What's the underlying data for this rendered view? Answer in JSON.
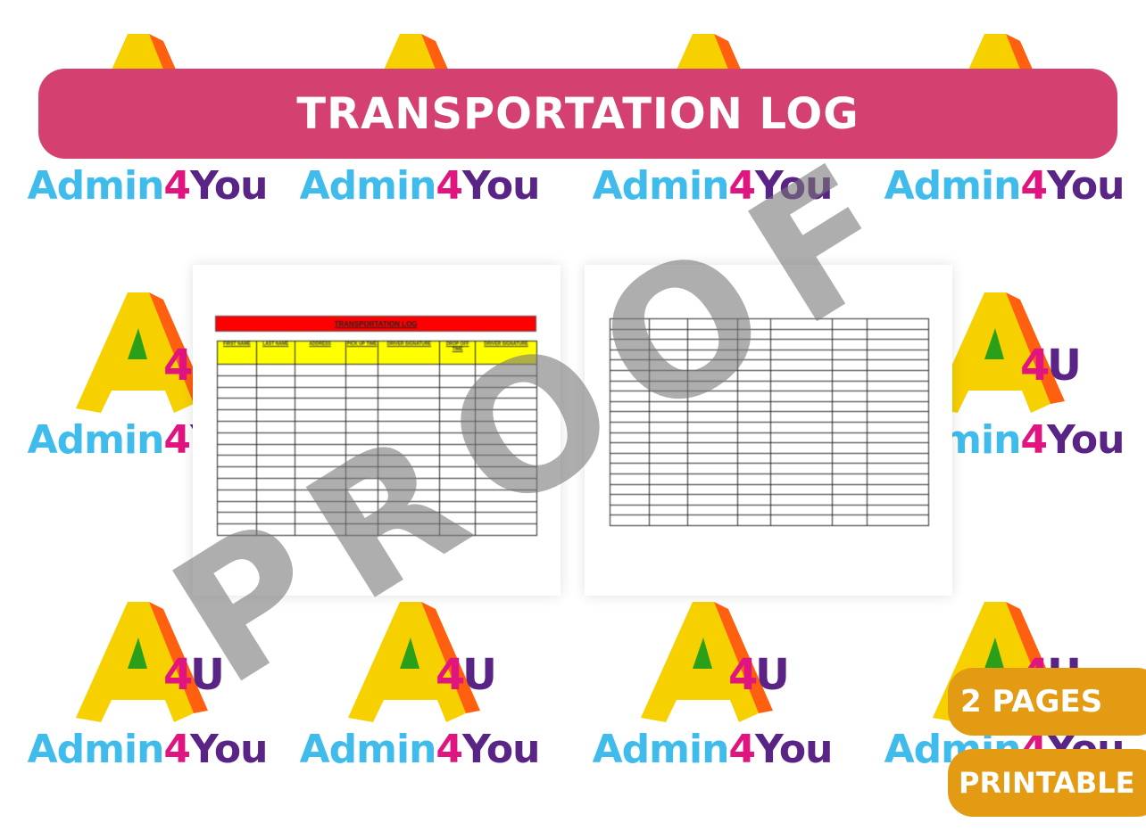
{
  "brand": {
    "part1": "Admin",
    "part2": "4",
    "part3": "You",
    "logo_mark": "A4U"
  },
  "banner": {
    "title": "TRANSPORTATION LOG"
  },
  "preview": {
    "page1": {
      "title": "TRANSPORTATION LOG",
      "columns": [
        "FIRST NAME",
        "LAST NAME",
        "ADDRESS",
        "PICK UP TIME",
        "DRIVER SIGNATURE",
        "DROP OFF TIME",
        "DRIVER SIGNATURE"
      ]
    }
  },
  "watermark": "PROOF",
  "badges": {
    "pages": "2 PAGES",
    "format": "PRINTABLE"
  },
  "colors": {
    "banner": "#d44070",
    "badge": "#e39b14",
    "title_bar": "#ff0000",
    "header": "#ffff00"
  }
}
